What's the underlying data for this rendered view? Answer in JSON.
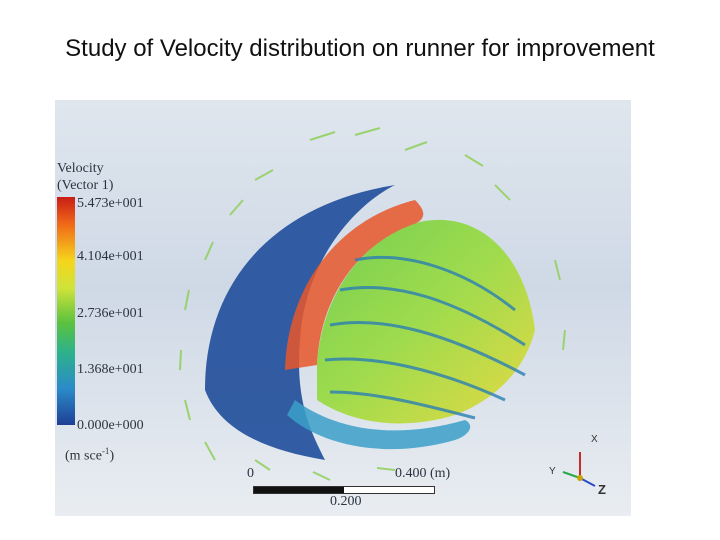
{
  "slide": {
    "title": "Study of Velocity distribution on runner for improvement"
  },
  "figure": {
    "legend": {
      "title_line1": "Velocity",
      "title_line2": "(Vector 1)",
      "ticks": [
        "5.473e+001",
        "4.104e+001",
        "2.736e+001",
        "1.368e+001",
        "0.000e+000"
      ],
      "unit": "(m sce",
      "unit_sup": "-1",
      "unit_close": ")"
    },
    "scale": {
      "start": "0",
      "end": "0.400 (m)",
      "mid": "0.200"
    },
    "axes": {
      "x": "X",
      "y": "Y",
      "z": "Z"
    },
    "colors": {
      "max": "#c81d16",
      "high": "#f5d51c",
      "mid": "#5cc23e",
      "low": "#2b8bc9",
      "min": "#1f3f95"
    }
  }
}
